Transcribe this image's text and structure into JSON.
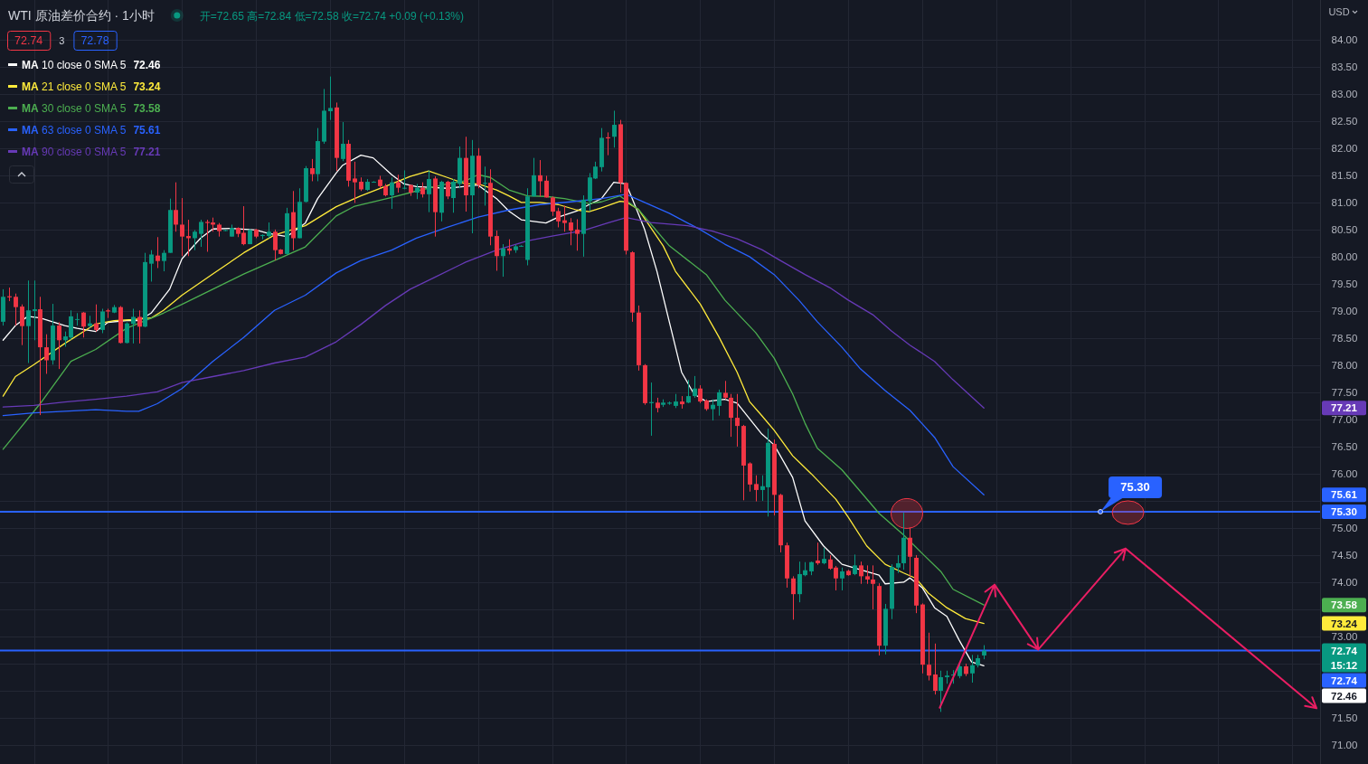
{
  "chart_data": {
    "type": "candlestick",
    "title": "WTI 原油差价合约 · 1小时",
    "subtitle": "开=72.65 高=72.84 低=72.58 收=72.74 +0.09 (+0.13%)",
    "ylabel": "USD",
    "annotations": [
      "72.74",
      "3",
      "72.78",
      "72.74",
      "15:12",
      "72.46",
      "73.24",
      "73.58",
      "75.61",
      "77.21",
      {
        "text": "75.30",
        "y": 75.3
      }
    ],
    "categories": [
      null,
      null,
      null,
      null,
      null,
      null,
      null,
      null,
      null,
      null,
      null,
      null,
      null,
      null,
      null,
      null,
      null,
      null,
      null,
      null,
      null,
      null,
      null,
      null,
      null,
      null,
      null,
      null,
      null,
      null,
      null,
      null,
      null,
      null,
      null,
      null,
      null,
      null,
      null,
      null,
      null,
      null,
      null,
      null,
      null,
      null,
      null,
      null,
      null,
      null,
      null,
      null,
      null,
      null,
      null,
      null,
      null,
      null,
      null,
      null,
      null,
      null,
      null,
      null,
      null,
      null,
      null,
      null,
      null,
      null,
      null,
      null,
      null,
      null,
      null,
      null,
      null,
      null,
      null,
      null,
      null,
      null,
      null,
      null,
      null,
      null,
      null,
      null,
      null,
      null,
      null,
      null,
      null,
      null,
      null,
      null,
      null,
      null,
      null,
      null,
      null,
      null,
      null,
      null,
      null,
      null,
      null,
      null,
      null,
      null,
      null,
      null,
      null,
      null,
      null,
      null,
      null,
      null,
      null,
      null,
      null,
      null,
      null,
      null,
      null,
      null,
      null,
      null,
      null,
      null,
      null,
      null,
      null,
      null,
      null,
      null,
      null,
      null,
      null,
      null,
      null,
      null,
      null,
      null,
      null,
      null,
      null,
      null,
      null,
      null,
      null,
      null,
      null,
      null,
      null,
      null,
      null,
      null,
      null,
      null,
      null,
      null,
      null,
      null,
      null,
      null,
      null,
      null,
      null,
      null,
      null,
      null,
      null,
      null,
      null,
      null,
      null,
      null,
      null,
      null,
      null,
      null,
      null,
      null,
      null,
      null,
      null,
      null,
      null,
      null,
      null,
      null,
      null,
      null,
      null,
      null,
      null,
      null,
      null,
      null,
      null,
      null,
      null,
      null,
      null,
      null,
      null,
      null,
      null,
      null,
      null,
      null,
      null,
      null
    ],
    "ohlc": [
      [
        78.8,
        79.4,
        78.73,
        79.26
      ],
      [
        79.27,
        79.43,
        79.18,
        79.25
      ],
      [
        79.26,
        79.32,
        78.73,
        79.07
      ],
      [
        79.08,
        79.12,
        78.37,
        78.72
      ],
      [
        78.72,
        79.56,
        78.04,
        79.01
      ],
      [
        79.0,
        79.56,
        78.46,
        79.03
      ],
      [
        79.03,
        79.26,
        77.08,
        78.33
      ],
      [
        78.33,
        78.57,
        77.84,
        78.09
      ],
      [
        78.09,
        79.13,
        78.01,
        78.73
      ],
      [
        78.73,
        78.79,
        77.93,
        78.46
      ],
      [
        78.46,
        78.62,
        78.34,
        78.53
      ],
      [
        78.51,
        79.01,
        78.47,
        78.9
      ],
      [
        78.84,
        78.96,
        78.73,
        78.85
      ],
      [
        78.97,
        78.98,
        78.51,
        78.71
      ],
      [
        78.72,
        78.91,
        78.69,
        78.77
      ],
      [
        78.77,
        79.12,
        78.62,
        78.65
      ],
      [
        78.65,
        79.04,
        78.59,
        78.99
      ],
      [
        79.01,
        79.04,
        78.87,
        78.99
      ],
      [
        78.97,
        79.11,
        78.96,
        79.07
      ],
      [
        79.07,
        79.09,
        78.4,
        78.41
      ],
      [
        78.41,
        78.79,
        78.4,
        78.77
      ],
      [
        78.76,
        79.04,
        78.4,
        78.89
      ],
      [
        78.89,
        79.01,
        78.4,
        78.71
      ],
      [
        78.71,
        80.07,
        78.7,
        79.9
      ],
      [
        79.87,
        80.12,
        79.54,
        80.04
      ],
      [
        80.02,
        80.36,
        79.79,
        79.92
      ],
      [
        79.92,
        80.12,
        79.73,
        80.07
      ],
      [
        80.07,
        81.07,
        80.07,
        80.86
      ],
      [
        80.86,
        81.37,
        80.46,
        80.59
      ],
      [
        80.59,
        81.08,
        80.01,
        80.37
      ],
      [
        80.38,
        80.68,
        80.01,
        80.34
      ],
      [
        80.34,
        80.49,
        80.12,
        80.46
      ],
      [
        80.42,
        80.68,
        80.18,
        80.64
      ],
      [
        80.64,
        80.68,
        80.09,
        80.62
      ],
      [
        80.63,
        80.72,
        80.46,
        80.59
      ],
      [
        80.59,
        80.62,
        80.37,
        80.47
      ],
      [
        80.48,
        80.5,
        80.47,
        80.49
      ],
      [
        80.37,
        80.59,
        80.37,
        80.53
      ],
      [
        80.53,
        80.54,
        80.36,
        80.42
      ],
      [
        80.44,
        80.93,
        80.21,
        80.23
      ],
      [
        80.23,
        80.51,
        80.23,
        80.49
      ],
      [
        80.5,
        80.51,
        80.34,
        80.37
      ],
      [
        80.38,
        80.41,
        80.32,
        80.4
      ],
      [
        80.38,
        80.63,
        80.34,
        80.46
      ],
      [
        80.46,
        80.5,
        79.93,
        80.12
      ],
      [
        80.13,
        80.14,
        80.04,
        80.05
      ],
      [
        80.05,
        80.9,
        80.04,
        80.8
      ],
      [
        80.82,
        81.21,
        80.12,
        80.34
      ],
      [
        80.34,
        81.26,
        80.34,
        81.01
      ],
      [
        81.01,
        81.67,
        81.0,
        81.63
      ],
      [
        81.63,
        81.8,
        81.39,
        81.52
      ],
      [
        81.52,
        82.37,
        81.39,
        82.13
      ],
      [
        82.12,
        83.09,
        82.08,
        82.69
      ],
      [
        82.68,
        83.32,
        82.52,
        82.74
      ],
      [
        82.75,
        82.84,
        81.58,
        81.82
      ],
      [
        81.8,
        82.48,
        81.76,
        82.08
      ],
      [
        82.08,
        82.15,
        81.29,
        81.4
      ],
      [
        81.44,
        81.75,
        80.99,
        81.37
      ],
      [
        81.38,
        81.46,
        81.21,
        81.24
      ],
      [
        81.23,
        81.43,
        81.21,
        81.38
      ],
      [
        81.37,
        81.39,
        81.37,
        81.38
      ],
      [
        81.42,
        81.49,
        81.26,
        81.3
      ],
      [
        81.3,
        81.34,
        81.11,
        81.13
      ],
      [
        81.13,
        81.46,
        80.88,
        81.37
      ],
      [
        81.37,
        81.51,
        81.18,
        81.27
      ],
      [
        81.26,
        81.59,
        81.24,
        81.27
      ],
      [
        81.32,
        81.33,
        81.12,
        81.18
      ],
      [
        81.18,
        81.34,
        81.06,
        81.27
      ],
      [
        81.27,
        81.37,
        81.09,
        81.15
      ],
      [
        81.15,
        81.59,
        80.82,
        81.43
      ],
      [
        81.44,
        81.48,
        80.37,
        80.82
      ],
      [
        80.81,
        81.4,
        80.65,
        81.38
      ],
      [
        81.38,
        81.4,
        81.06,
        81.11
      ],
      [
        81.08,
        81.43,
        80.81,
        81.38
      ],
      [
        81.34,
        82.03,
        81.26,
        81.82
      ],
      [
        81.82,
        82.21,
        80.83,
        81.13
      ],
      [
        81.13,
        82.15,
        80.43,
        81.86
      ],
      [
        81.86,
        82.0,
        81.26,
        81.32
      ],
      [
        81.35,
        81.66,
        80.94,
        81.36
      ],
      [
        81.36,
        81.61,
        80.21,
        80.37
      ],
      [
        80.38,
        80.48,
        79.74,
        80.01
      ],
      [
        80.01,
        80.23,
        79.63,
        80.15
      ],
      [
        80.15,
        80.32,
        80.04,
        80.11
      ],
      [
        80.12,
        80.22,
        80.07,
        80.19
      ],
      [
        80.19,
        80.21,
        80.18,
        80.2
      ],
      [
        79.94,
        81.26,
        79.84,
        81.11
      ],
      [
        81.11,
        81.82,
        81.11,
        81.5
      ],
      [
        81.5,
        81.78,
        81.11,
        81.39
      ],
      [
        81.4,
        81.49,
        81.09,
        81.09
      ],
      [
        81.09,
        81.11,
        80.75,
        80.83
      ],
      [
        80.84,
        80.9,
        80.54,
        80.65
      ],
      [
        80.67,
        80.94,
        80.46,
        80.62
      ],
      [
        80.63,
        80.71,
        80.21,
        80.48
      ],
      [
        80.5,
        80.69,
        80.11,
        80.42
      ],
      [
        80.42,
        81.13,
        80.0,
        81.05
      ],
      [
        81.02,
        81.54,
        80.84,
        81.46
      ],
      [
        81.44,
        81.75,
        81.43,
        81.66
      ],
      [
        81.65,
        82.37,
        81.57,
        82.19
      ],
      [
        82.2,
        82.29,
        81.87,
        82.18
      ],
      [
        82.21,
        82.69,
        82.01,
        82.43
      ],
      [
        82.44,
        82.52,
        81.18,
        81.36
      ],
      [
        81.36,
        81.37,
        80.04,
        80.11
      ],
      [
        80.08,
        80.1,
        78.8,
        78.97
      ],
      [
        78.97,
        79.1,
        77.9,
        78.0
      ],
      [
        78.0,
        78.02,
        77.27,
        77.3
      ],
      [
        77.3,
        77.68,
        76.7,
        77.32
      ],
      [
        77.31,
        77.4,
        77.13,
        77.21
      ],
      [
        77.27,
        77.37,
        77.23,
        77.31
      ],
      [
        77.29,
        77.33,
        77.27,
        77.31
      ],
      [
        77.25,
        77.47,
        77.21,
        77.33
      ],
      [
        77.33,
        77.43,
        77.2,
        77.28
      ],
      [
        77.31,
        77.73,
        77.3,
        77.43
      ],
      [
        77.43,
        77.8,
        77.4,
        77.57
      ],
      [
        77.57,
        77.63,
        77.3,
        77.33
      ],
      [
        77.35,
        77.37,
        77.16,
        77.19
      ],
      [
        77.19,
        77.37,
        76.98,
        77.27
      ],
      [
        77.25,
        77.55,
        77.07,
        77.5
      ],
      [
        77.49,
        77.71,
        77.37,
        77.4
      ],
      [
        77.4,
        77.47,
        76.68,
        77.03
      ],
      [
        77.03,
        77.47,
        76.5,
        76.88
      ],
      [
        76.88,
        76.9,
        75.51,
        76.15
      ],
      [
        76.19,
        76.21,
        75.67,
        75.8
      ],
      [
        75.81,
        75.97,
        75.49,
        75.7
      ],
      [
        75.7,
        75.97,
        75.5,
        75.77
      ],
      [
        75.75,
        76.83,
        75.21,
        76.57
      ],
      [
        76.55,
        76.63,
        75.23,
        75.61
      ],
      [
        75.61,
        75.63,
        74.55,
        74.68
      ],
      [
        74.68,
        74.73,
        73.9,
        74.07
      ],
      [
        74.07,
        74.11,
        73.31,
        73.78
      ],
      [
        73.78,
        74.38,
        73.63,
        74.15
      ],
      [
        74.13,
        74.37,
        74.11,
        74.22
      ],
      [
        74.2,
        74.38,
        74.13,
        74.37
      ],
      [
        74.4,
        74.73,
        74.32,
        74.35
      ],
      [
        74.35,
        74.63,
        74.33,
        74.43
      ],
      [
        74.42,
        74.5,
        74.23,
        74.25
      ],
      [
        74.27,
        74.3,
        73.85,
        74.07
      ],
      [
        74.07,
        74.27,
        73.85,
        74.2
      ],
      [
        74.21,
        74.23,
        74.12,
        74.13
      ],
      [
        74.15,
        74.51,
        74.13,
        74.31
      ],
      [
        74.31,
        74.38,
        73.97,
        74.11
      ],
      [
        74.11,
        74.31,
        73.97,
        74.05
      ],
      [
        74.05,
        74.31,
        73.5,
        73.97
      ],
      [
        73.93,
        73.98,
        72.65,
        72.83
      ],
      [
        72.83,
        73.6,
        72.67,
        73.51
      ],
      [
        73.51,
        74.33,
        73.32,
        74.28
      ],
      [
        74.27,
        74.5,
        74.17,
        74.35
      ],
      [
        74.35,
        75.28,
        74.23,
        74.82
      ],
      [
        74.82,
        75.01,
        74.1,
        74.47
      ],
      [
        74.45,
        74.5,
        73.43,
        73.57
      ],
      [
        73.59,
        73.61,
        72.32,
        72.48
      ],
      [
        72.48,
        73.07,
        72.19,
        72.28
      ],
      [
        72.3,
        72.87,
        71.93,
        72.0
      ],
      [
        72.0,
        72.37,
        71.61,
        72.25
      ],
      [
        72.25,
        72.37,
        72.13,
        72.28
      ],
      [
        72.28,
        72.38,
        72.13,
        72.3
      ],
      [
        72.27,
        72.5,
        72.23,
        72.45
      ],
      [
        72.45,
        72.5,
        72.27,
        72.31
      ],
      [
        72.32,
        72.66,
        72.15,
        72.47
      ],
      [
        72.47,
        72.66,
        72.43,
        72.6
      ],
      [
        72.65,
        72.84,
        72.58,
        72.74
      ],
      null,
      null,
      null,
      null,
      null,
      null,
      null,
      null,
      null,
      null,
      null,
      null,
      null,
      null,
      null,
      null,
      null,
      null,
      null,
      null,
      null,
      null,
      null,
      null,
      null,
      null,
      null,
      null,
      null,
      null,
      null,
      null,
      null,
      null,
      null,
      null,
      null,
      null,
      null,
      null,
      null,
      null,
      null,
      null,
      null,
      null,
      null,
      null,
      null,
      null,
      null,
      null,
      null,
      null
    ],
    "series": [
      {
        "name": "MA 10 close 0 SMA 5",
        "type": "line",
        "color": "#ffffff",
        "values": [
          78.46,
          null,
          78.73,
          null,
          78.9,
          null,
          78.87,
          null,
          null,
          null,
          78.73,
          null,
          78.68,
          null,
          null,
          78.62,
          null,
          78.79,
          null,
          null,
          78.82,
          null,
          78.82,
          null,
          78.96,
          null,
          null,
          79.4,
          null,
          79.96,
          null,
          null,
          80.34,
          null,
          80.51,
          null,
          null,
          80.52,
          null,
          null,
          null,
          80.49,
          null,
          80.43,
          null,
          null,
          80.37,
          null,
          null,
          80.62,
          null,
          81.07,
          null,
          null,
          81.54,
          81.68,
          null,
          null,
          81.87,
          null,
          81.82,
          null,
          null,
          81.51,
          null,
          81.34,
          null,
          81.29,
          null,
          null,
          null,
          null,
          81.26,
          null,
          null,
          null,
          null,
          81.32,
          null,
          null,
          81.07,
          null,
          80.84,
          null,
          80.68,
          null,
          null,
          null,
          80.62,
          null,
          80.73,
          null,
          null,
          80.84,
          null,
          80.96,
          null,
          81.07,
          null,
          81.37,
          null,
          81.34,
          81.07,
          null,
          80.5,
          null,
          79.73,
          null,
          78.8,
          null,
          77.87,
          null,
          77.47,
          null,
          77.33,
          null,
          null,
          77.37,
          null,
          77.3,
          null,
          null,
          null,
          76.73,
          null,
          76.53,
          null,
          null,
          75.93,
          null,
          75.13,
          null,
          null,
          74.67,
          null,
          null,
          74.33,
          null,
          null,
          74.23,
          null,
          null,
          74.13,
          73.97,
          null,
          null,
          74.0,
          74.08,
          null,
          73.9,
          null,
          73.53,
          null,
          73.37,
          null,
          72.93,
          null,
          72.53,
          null,
          72.46,
          null,
          null,
          null,
          null,
          null,
          null,
          null,
          null,
          null,
          null,
          null,
          null,
          null,
          null,
          null,
          null,
          null,
          null,
          null,
          null,
          null,
          null,
          null,
          null,
          null,
          null,
          null,
          null,
          null,
          null,
          null,
          null,
          null,
          null,
          null,
          null,
          null,
          null,
          null,
          null,
          null,
          null,
          null,
          null,
          null,
          null,
          null,
          null,
          null,
          null,
          null,
          null,
          null,
          null
        ]
      },
      {
        "name": "MA 21 close 0 SMA 5",
        "type": "line",
        "color": "#ffeb3b",
        "values": [
          77.43,
          null,
          77.79,
          null,
          null,
          78.01,
          null,
          null,
          null,
          null,
          78.4,
          null,
          null,
          null,
          null,
          78.76,
          null,
          null,
          78.82,
          null,
          null,
          78.84,
          null,
          null,
          78.87,
          null,
          79.01,
          null,
          null,
          79.29,
          null,
          null,
          null,
          null,
          79.68,
          null,
          null,
          null,
          null,
          80.07,
          null,
          null,
          null,
          null,
          80.4,
          null,
          null,
          null,
          null,
          80.57,
          null,
          null,
          null,
          null,
          80.92,
          null,
          null,
          null,
          81.12,
          null,
          null,
          null,
          null,
          81.34,
          null,
          null,
          81.48,
          null,
          null,
          81.58,
          null,
          null,
          81.46,
          null,
          null,
          81.34,
          null,
          81.34,
          null,
          null,
          81.23,
          null,
          81.12,
          null,
          81.0,
          null,
          null,
          81.0,
          null,
          null,
          80.96,
          null,
          null,
          80.86,
          null,
          80.83,
          null,
          80.9,
          null,
          null,
          81.02,
          81.01,
          null,
          80.87,
          null,
          null,
          null,
          80.2,
          null,
          79.73,
          null,
          null,
          null,
          79.13,
          null,
          null,
          78.53,
          null,
          null,
          77.87,
          null,
          77.33,
          null,
          77.07,
          null,
          76.8,
          null,
          null,
          76.33,
          null,
          null,
          76.0,
          null,
          null,
          null,
          75.53,
          null,
          75.2,
          null,
          null,
          74.67,
          null,
          null,
          74.33,
          null,
          null,
          74.17,
          null,
          74.07,
          null,
          73.8,
          null,
          null,
          73.53,
          null,
          null,
          73.33,
          null,
          null,
          73.24,
          null,
          null,
          null,
          null,
          null,
          null,
          null,
          null,
          null,
          null,
          null,
          null,
          null,
          null,
          null,
          null,
          null,
          null,
          null,
          null,
          null,
          null,
          null,
          null,
          null,
          null,
          null,
          null,
          null,
          null,
          null,
          null,
          null,
          null,
          null,
          null,
          null,
          null,
          null,
          null,
          null,
          null,
          null,
          null,
          null,
          null,
          null,
          null,
          null,
          null,
          null,
          null,
          null,
          null
        ]
      },
      {
        "name": "MA 30 close 0 SMA 5",
        "type": "line",
        "color": "#4caf50",
        "values": [
          76.45,
          null,
          76.73,
          null,
          null,
          null,
          77.29,
          null,
          null,
          null,
          null,
          78.07,
          null,
          null,
          null,
          78.29,
          null,
          null,
          null,
          null,
          78.68,
          null,
          null,
          null,
          null,
          null,
          78.96,
          null,
          null,
          79.12,
          null,
          null,
          null,
          null,
          79.4,
          null,
          null,
          null,
          null,
          79.68,
          null,
          null,
          null,
          null,
          79.93,
          null,
          null,
          null,
          null,
          80.18,
          null,
          null,
          null,
          null,
          80.75,
          null,
          null,
          80.93,
          null,
          null,
          null,
          null,
          null,
          81.09,
          null,
          null,
          null,
          81.21,
          null,
          null,
          null,
          null,
          81.34,
          null,
          null,
          81.4,
          null,
          81.51,
          null,
          81.46,
          null,
          null,
          81.23,
          null,
          null,
          81.12,
          null,
          null,
          81.11,
          null,
          null,
          81.07,
          null,
          null,
          null,
          80.98,
          null,
          81.01,
          null,
          null,
          81.12,
          null,
          null,
          80.87,
          null,
          null,
          null,
          null,
          80.2,
          null,
          null,
          null,
          null,
          null,
          79.67,
          null,
          null,
          79.2,
          null,
          null,
          null,
          null,
          78.6,
          null,
          null,
          78.13,
          null,
          null,
          77.47,
          null,
          76.93,
          null,
          76.47,
          null,
          null,
          null,
          76.07,
          null,
          null,
          75.67,
          null,
          null,
          75.27,
          null,
          null,
          null,
          74.87,
          null,
          null,
          74.53,
          null,
          null,
          74.2,
          null,
          73.87,
          null,
          null,
          null,
          null,
          73.58,
          null,
          null,
          null,
          null,
          null,
          null,
          null,
          null,
          null,
          null,
          null,
          null,
          null,
          null,
          null,
          null,
          null,
          null,
          null,
          null,
          null,
          null,
          null,
          null,
          null,
          null,
          null,
          null,
          null,
          null,
          null,
          null,
          null,
          null,
          null,
          null,
          null,
          null,
          null,
          null,
          null,
          null,
          null,
          null,
          null,
          null,
          null,
          null,
          null,
          null,
          null,
          null,
          null,
          null
        ]
      },
      {
        "name": "MA 63 close 0 SMA 5",
        "type": "line",
        "color": "#2962ff",
        "values": [
          77.07,
          null,
          null,
          null,
          null,
          77.12,
          null,
          null,
          null,
          null,
          77.15,
          null,
          null,
          null,
          null,
          77.18,
          null,
          null,
          null,
          null,
          77.15,
          null,
          77.15,
          null,
          null,
          77.29,
          null,
          null,
          null,
          77.57,
          null,
          null,
          null,
          null,
          78.07,
          null,
          null,
          null,
          null,
          78.51,
          null,
          null,
          null,
          null,
          79.01,
          null,
          null,
          null,
          null,
          79.29,
          null,
          null,
          null,
          null,
          79.7,
          null,
          null,
          null,
          79.93,
          null,
          null,
          null,
          null,
          80.12,
          null,
          null,
          null,
          80.34,
          null,
          null,
          null,
          null,
          80.54,
          null,
          null,
          null,
          null,
          80.73,
          null,
          null,
          null,
          null,
          80.86,
          null,
          null,
          null,
          null,
          80.96,
          null,
          null,
          null,
          null,
          81.01,
          null,
          null,
          null,
          null,
          81.07,
          null,
          null,
          null,
          81.15,
          null,
          null,
          81.0,
          null,
          null,
          null,
          80.8,
          null,
          null,
          null,
          null,
          80.5,
          null,
          null,
          null,
          80.23,
          null,
          null,
          null,
          80.0,
          null,
          null,
          null,
          79.67,
          null,
          null,
          null,
          79.2,
          null,
          null,
          78.8,
          null,
          null,
          null,
          78.33,
          null,
          null,
          77.93,
          null,
          null,
          null,
          77.53,
          null,
          null,
          null,
          77.17,
          null,
          null,
          null,
          76.67,
          null,
          null,
          76.13,
          null,
          null,
          null,
          null,
          75.61,
          null,
          null,
          null,
          null,
          null,
          null,
          null,
          null,
          null,
          null,
          null,
          null,
          null,
          null,
          null,
          null,
          null,
          null,
          null,
          null,
          null,
          null,
          null,
          null,
          null,
          null,
          null,
          null,
          null,
          null,
          null,
          null,
          null,
          null,
          null,
          null,
          null,
          null,
          null,
          null,
          null,
          null,
          null,
          null,
          null,
          null,
          null,
          null,
          null,
          null,
          null,
          null,
          null,
          null
        ]
      },
      {
        "name": "MA 90 close 0 SMA 5",
        "type": "line",
        "color": "#673ab7",
        "values": [
          77.23,
          null,
          null,
          null,
          null,
          77.26,
          null,
          null,
          null,
          null,
          77.32,
          null,
          null,
          null,
          null,
          77.37,
          null,
          null,
          null,
          null,
          77.43,
          null,
          null,
          null,
          null,
          77.51,
          null,
          null,
          null,
          77.68,
          null,
          null,
          null,
          null,
          77.79,
          null,
          null,
          null,
          null,
          77.9,
          null,
          null,
          null,
          null,
          78.04,
          null,
          null,
          null,
          null,
          78.15,
          null,
          null,
          null,
          null,
          78.43,
          null,
          null,
          null,
          78.75,
          null,
          null,
          null,
          79.1,
          null,
          null,
          null,
          79.4,
          null,
          null,
          null,
          79.62,
          null,
          null,
          null,
          null,
          79.9,
          null,
          null,
          null,
          null,
          80.12,
          null,
          null,
          null,
          null,
          80.29,
          null,
          null,
          null,
          80.38,
          null,
          null,
          null,
          null,
          80.48,
          null,
          null,
          null,
          80.62,
          null,
          null,
          80.72,
          null,
          null,
          null,
          80.63,
          null,
          null,
          null,
          null,
          null,
          80.57,
          null,
          null,
          null,
          80.47,
          null,
          null,
          null,
          80.33,
          null,
          null,
          null,
          80.13,
          null,
          null,
          79.93,
          null,
          null,
          null,
          79.67,
          null,
          null,
          null,
          79.43,
          null,
          null,
          79.2,
          null,
          null,
          null,
          78.93,
          null,
          null,
          78.63,
          null,
          null,
          78.37,
          null,
          null,
          null,
          78.07,
          null,
          null,
          77.73,
          null,
          null,
          null,
          null,
          77.21,
          null,
          null,
          null,
          null,
          null,
          null,
          null,
          null,
          null,
          null,
          null,
          null,
          null,
          null,
          null,
          null,
          null,
          null,
          null,
          null,
          null,
          null,
          null,
          null,
          null,
          null,
          null,
          null,
          null,
          null,
          null,
          null,
          null,
          null,
          null,
          null,
          null,
          null,
          null,
          null,
          null,
          null,
          null,
          null,
          null,
          null,
          null,
          null,
          null,
          null,
          null,
          null,
          null,
          null
        ]
      }
    ],
    "ylim": [
      70.65,
      84.73
    ],
    "yticks": [
      {
        "value": 71,
        "label": "71.00"
      },
      {
        "value": 71.5,
        "label": "71.50"
      },
      {
        "value": 72,
        "label": null
      },
      {
        "value": 72.5,
        "label": null
      },
      {
        "value": 73,
        "label": "73.00"
      },
      {
        "value": 73.5,
        "label": null
      },
      {
        "value": 74,
        "label": "74.00"
      },
      {
        "value": 74.5,
        "label": "74.50"
      },
      {
        "value": 75,
        "label": "75.00"
      },
      {
        "value": 75.5,
        "label": null
      },
      {
        "value": 76,
        "label": "76.00"
      },
      {
        "value": 76.5,
        "label": "76.50"
      },
      {
        "value": 77,
        "label": "77.00"
      },
      {
        "value": 77.5,
        "label": "77.50"
      },
      {
        "value": 78,
        "label": "78.00"
      },
      {
        "value": 78.5,
        "label": "78.50"
      },
      {
        "value": 79,
        "label": "79.00"
      },
      {
        "value": 79.5,
        "label": "79.50"
      },
      {
        "value": 80,
        "label": "80.00"
      },
      {
        "value": 80.5,
        "label": "80.50"
      },
      {
        "value": 81,
        "label": "81.00"
      },
      {
        "value": 81.5,
        "label": "81.50"
      },
      {
        "value": 82,
        "label": "82.00"
      },
      {
        "value": 82.5,
        "label": "82.50"
      },
      {
        "value": 83,
        "label": "83.00"
      },
      {
        "value": 83.5,
        "label": "83.50"
      },
      {
        "value": 84,
        "label": "84.00"
      }
    ],
    "ref_lines": [
      {
        "axis": "y",
        "value": 75.3,
        "label": "75.30",
        "color": "#2962ff"
      },
      {
        "axis": "y",
        "value": 72.74,
        "label": "72.74",
        "color": "#2962ff"
      }
    ],
    "grid": true,
    "legend": "top left",
    "tick_labels": "y"
  }
}
